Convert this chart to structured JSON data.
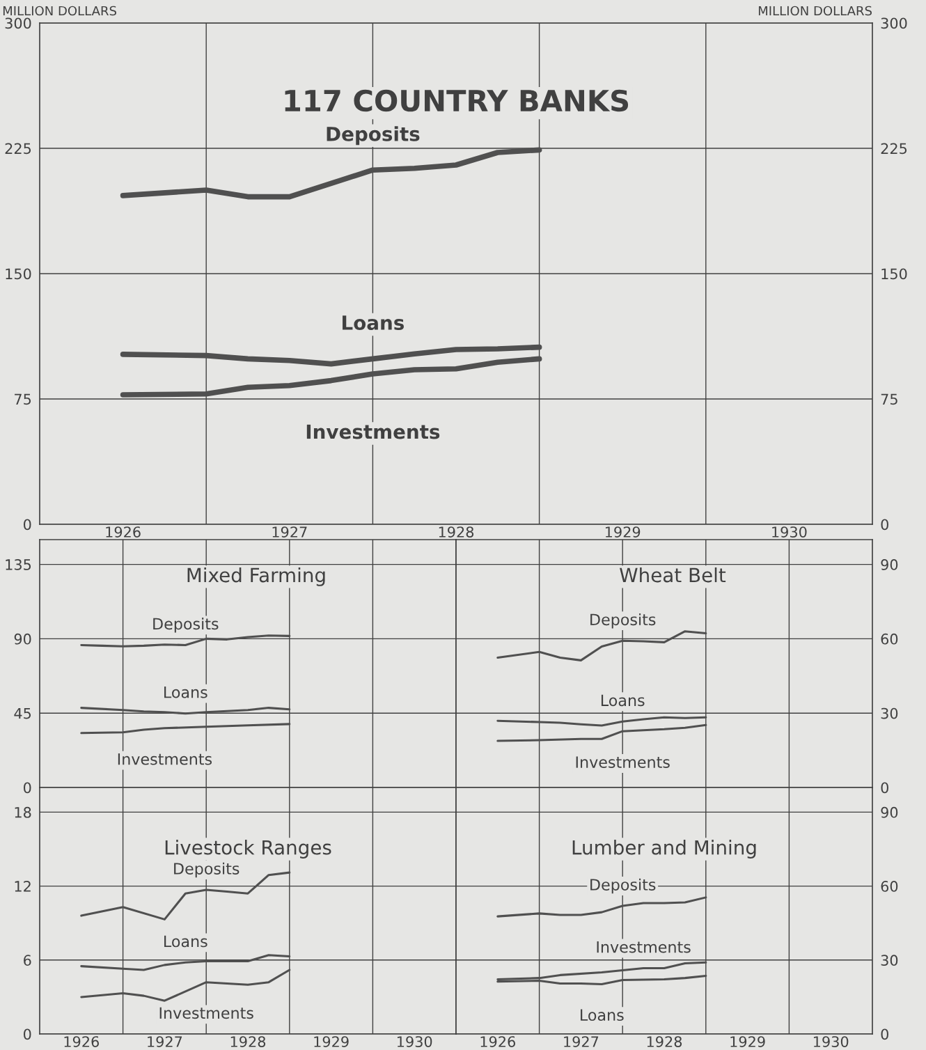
{
  "chart_data": [
    {
      "type": "line",
      "title": "117 COUNTRY BANKS",
      "ylabel": "MILLION DOLLARS",
      "y2label": "MILLION DOLLARS",
      "xlim": [
        1926,
        1931
      ],
      "xticks": [
        {
          "value": 1926.5,
          "label": "1926"
        },
        {
          "value": 1927,
          "label": null
        },
        {
          "value": 1927.5,
          "label": "1927"
        },
        {
          "value": 1928,
          "label": null
        },
        {
          "value": 1928.5,
          "label": "1928"
        },
        {
          "value": 1929,
          "label": null
        },
        {
          "value": 1929.5,
          "label": "1929"
        },
        {
          "value": 1930,
          "label": null
        },
        {
          "value": 1930.5,
          "label": "1930"
        }
      ],
      "ylim": [
        0,
        300
      ],
      "yticks": [
        0,
        75,
        150,
        225,
        300
      ],
      "y2lim": [
        0,
        300
      ],
      "y2ticks": [
        0,
        75,
        150,
        225,
        300
      ],
      "grid": true,
      "legend": false,
      "series": [
        {
          "name": "Deposits",
          "color": "#505050",
          "x": [
            1926.5,
            1927,
            1927.25,
            1927.5,
            1927.75,
            1928,
            1928.25,
            1928.5,
            1928.75,
            1929
          ],
          "values": [
            196.7,
            200,
            196,
            196,
            204,
            212,
            213,
            215,
            222.5,
            224
          ]
        },
        {
          "name": "Loans",
          "color": "#505050",
          "x": [
            1926.5,
            1927,
            1927.25,
            1927.5,
            1927.75,
            1928,
            1928.25,
            1928.5,
            1928.75,
            1929
          ],
          "values": [
            101.7,
            101,
            99,
            98,
            96,
            99,
            102,
            104.6,
            105,
            106
          ]
        },
        {
          "name": "Investments",
          "color": "#505050",
          "x": [
            1926.5,
            1927,
            1927.25,
            1927.5,
            1927.75,
            1928,
            1928.25,
            1928.5,
            1928.75,
            1929
          ],
          "values": [
            77.5,
            78,
            82,
            83,
            86,
            90,
            92.5,
            93,
            97,
            99
          ]
        }
      ]
    },
    {
      "type": "line",
      "title": "Mixed Farming",
      "xlim": [
        1926,
        1931
      ],
      "xticks": [
        {
          "value": 1927,
          "label": null
        },
        {
          "value": 1928,
          "label": null
        },
        {
          "value": 1929,
          "label": null
        },
        {
          "value": 1930,
          "label": null
        }
      ],
      "ylim": [
        0,
        150
      ],
      "yticks": [
        0,
        45,
        90,
        135
      ],
      "grid": true,
      "legend": false,
      "tick_labels": "y",
      "series": [
        {
          "name": "Deposits",
          "color": "#505050",
          "x": [
            1926.5,
            1926.75,
            1927,
            1927.25,
            1927.5,
            1927.75,
            1928,
            1928.25,
            1928.5,
            1928.75,
            1929
          ],
          "values": [
            86.2,
            85.8,
            85.4,
            85.8,
            86.5,
            86.2,
            90,
            89.6,
            91,
            92,
            91.7
          ]
        },
        {
          "name": "Loans",
          "color": "#505050",
          "x": [
            1926.5,
            1927,
            1927.25,
            1927.5,
            1927.75,
            1928,
            1928.5,
            1928.75,
            1929
          ],
          "values": [
            48.2,
            46.9,
            46,
            45.6,
            44.8,
            45.6,
            46.9,
            48.2,
            47.3
          ]
        },
        {
          "name": "Investments",
          "color": "#505050",
          "x": [
            1926.5,
            1927,
            1927.25,
            1927.5,
            1928,
            1928.5,
            1929
          ],
          "values": [
            33,
            33.4,
            35,
            35.9,
            36.8,
            37.6,
            38.4
          ]
        }
      ]
    },
    {
      "type": "line",
      "title": "Wheat Belt",
      "xlim": [
        1926,
        1931
      ],
      "xticks": [
        {
          "value": 1927,
          "label": null
        },
        {
          "value": 1928,
          "label": null
        },
        {
          "value": 1929,
          "label": null
        },
        {
          "value": 1930,
          "label": null
        }
      ],
      "ylim": [
        0,
        100
      ],
      "yticks": [
        0,
        30,
        60,
        90
      ],
      "grid": true,
      "legend": false,
      "tick_labels": "y",
      "series": [
        {
          "name": "Deposits",
          "color": "#505050",
          "x": [
            1926.5,
            1927,
            1927.25,
            1927.5,
            1927.75,
            1928,
            1928.25,
            1928.5,
            1928.75,
            1929
          ],
          "values": [
            52.4,
            54.7,
            52.4,
            51.3,
            56.9,
            59.2,
            59,
            58.6,
            63,
            62.2
          ]
        },
        {
          "name": "Loans",
          "color": "#505050",
          "x": [
            1926.5,
            1927,
            1927.25,
            1927.5,
            1927.75,
            1928,
            1928.25,
            1928.5,
            1928.75,
            1929
          ],
          "values": [
            26.9,
            26.4,
            26.1,
            25.5,
            25,
            26.6,
            27.5,
            28.3,
            28,
            28.3
          ]
        },
        {
          "name": "Investments",
          "color": "#505050",
          "x": [
            1926.5,
            1927,
            1927.5,
            1927.75,
            1928,
            1928.5,
            1928.75,
            1929
          ],
          "values": [
            18.8,
            19.1,
            19.6,
            19.6,
            22.7,
            23.5,
            24.1,
            25.2
          ]
        }
      ]
    },
    {
      "type": "line",
      "title": "Livestock Ranges",
      "xlim": [
        1926,
        1931
      ],
      "xticks": [
        {
          "value": 1926.5,
          "label": "1926"
        },
        {
          "value": 1927,
          "label": null
        },
        {
          "value": 1927.5,
          "label": "1927"
        },
        {
          "value": 1928,
          "label": null
        },
        {
          "value": 1928.5,
          "label": "1928"
        },
        {
          "value": 1929,
          "label": null
        },
        {
          "value": 1929.5,
          "label": "1929"
        },
        {
          "value": 1930,
          "label": null
        },
        {
          "value": 1930.5,
          "label": "1930"
        }
      ],
      "ylim": [
        0,
        20
      ],
      "yticks": [
        0,
        6,
        12,
        18
      ],
      "grid": true,
      "legend": false,
      "series": [
        {
          "name": "Deposits",
          "color": "#505050",
          "x": [
            1926.5,
            1927,
            1927.5,
            1927.75,
            1928,
            1928.25,
            1928.5,
            1928.75,
            1929
          ],
          "values": [
            9.6,
            10.3,
            9.3,
            11.4,
            11.7,
            11.55,
            11.4,
            12.9,
            13.1
          ]
        },
        {
          "name": "Loans",
          "color": "#505050",
          "x": [
            1926.5,
            1927,
            1927.25,
            1927.5,
            1927.75,
            1928,
            1928.5,
            1928.75,
            1929
          ],
          "values": [
            5.5,
            5.3,
            5.2,
            5.6,
            5.8,
            5.9,
            5.9,
            6.4,
            6.3
          ]
        },
        {
          "name": "Investments",
          "color": "#505050",
          "x": [
            1926.5,
            1927,
            1927.25,
            1927.5,
            1928,
            1928.5,
            1928.75,
            1929
          ],
          "values": [
            3.0,
            3.3,
            3.1,
            2.7,
            4.2,
            4.0,
            4.2,
            5.2
          ]
        }
      ]
    },
    {
      "type": "line",
      "title": "Lumber and Mining",
      "xlim": [
        1926,
        1931
      ],
      "xticks": [
        {
          "value": 1926.5,
          "label": "1926"
        },
        {
          "value": 1927,
          "label": null
        },
        {
          "value": 1927.5,
          "label": "1927"
        },
        {
          "value": 1928,
          "label": null
        },
        {
          "value": 1928.5,
          "label": "1928"
        },
        {
          "value": 1929,
          "label": null
        },
        {
          "value": 1929.5,
          "label": "1929"
        },
        {
          "value": 1930,
          "label": null
        },
        {
          "value": 1930.5,
          "label": "1930"
        }
      ],
      "ylim": [
        0,
        100
      ],
      "yticks": [
        0,
        30,
        60,
        90
      ],
      "grid": true,
      "legend": false,
      "series": [
        {
          "name": "Deposits",
          "color": "#505050",
          "x": [
            1926.5,
            1927,
            1927.25,
            1927.5,
            1927.75,
            1928,
            1928.25,
            1928.5,
            1928.75,
            1929
          ],
          "values": [
            47.7,
            48.9,
            48.3,
            48.3,
            49.4,
            52,
            53.1,
            53.1,
            53.4,
            55.4
          ]
        },
        {
          "name": "Investments",
          "color": "#505050",
          "x": [
            1926.5,
            1927,
            1927.25,
            1927.75,
            1928.25,
            1928.5,
            1928.75,
            1929
          ],
          "values": [
            22.2,
            22.7,
            23.9,
            25,
            26.7,
            26.7,
            28.7,
            29
          ]
        },
        {
          "name": "Loans",
          "color": "#505050",
          "x": [
            1926.5,
            1927,
            1927.25,
            1927.5,
            1927.75,
            1928,
            1928.5,
            1928.75,
            1929
          ],
          "values": [
            21.3,
            21.6,
            20.5,
            20.5,
            20.2,
            21.9,
            22.2,
            22.7,
            23.6
          ]
        }
      ]
    }
  ]
}
